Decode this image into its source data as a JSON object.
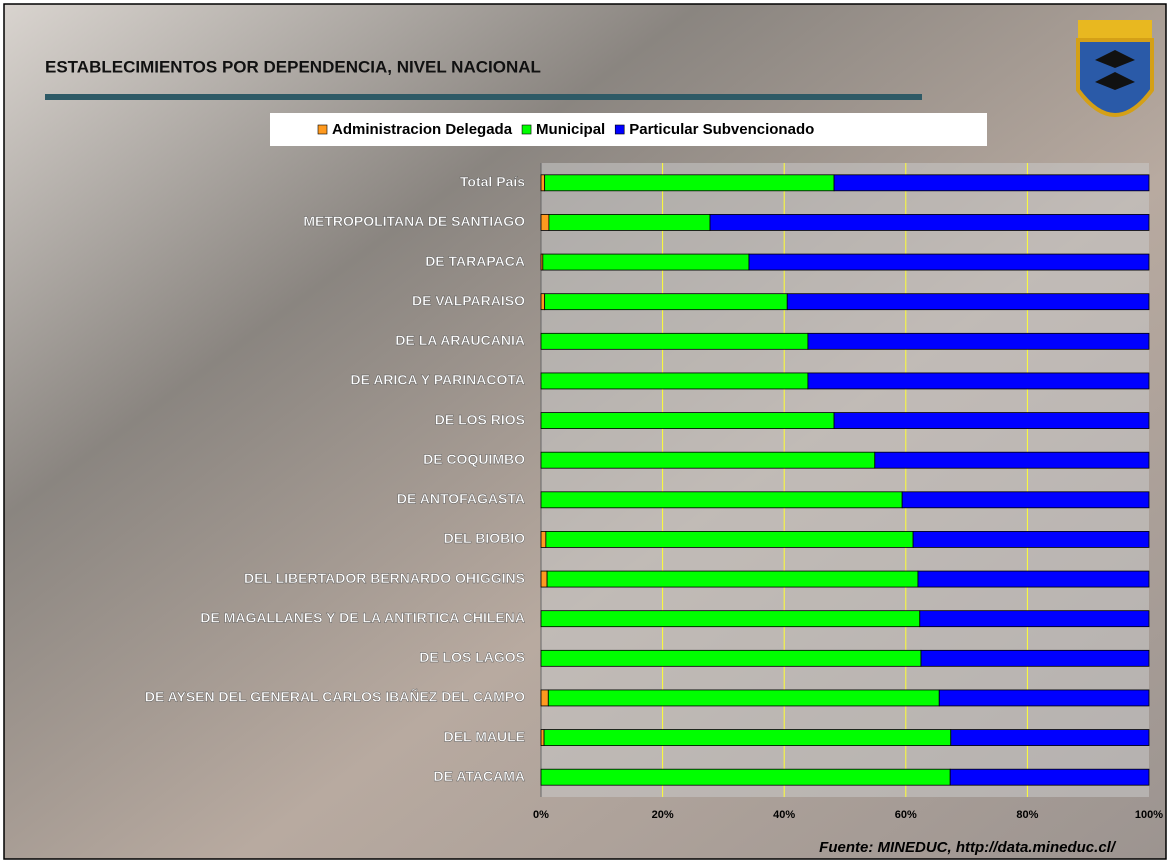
{
  "chart_data": {
    "type": "stacked-barh",
    "title": "ESTABLECIMIENTOS POR DEPENDENCIA, NIVEL NACIONAL",
    "source": "Fuente: MINEDUC, http://data.mineduc.cl/",
    "categories": [
      "Total País",
      "METROPOLITANA DE SANTIAGO",
      "DE TARAPACA",
      "DE VALPARAISO",
      "DE LA ARAUCANIA",
      "DE ARICA Y PARINACOTA",
      "DE LOS RIOS",
      "DE COQUIMBO",
      "DE ANTOFAGASTA",
      "DEL BIOBIO",
      "DEL LIBERTADOR BERNARDO OHIGGINS",
      "DE MAGALLANES Y DE LA ANTIRTICA CHILENA",
      "DE LOS LAGOS",
      "DE AYSEN DEL GENERAL CARLOS IBAÑEZ DEL CAMPO",
      "DEL MAULE",
      "DE ATACAMA"
    ],
    "series": [
      {
        "name": "Administracion Delegada",
        "color": "#ff9a1f",
        "values": [
          0.6,
          1.3,
          0.3,
          0.6,
          0,
          0,
          0,
          0,
          0,
          0.8,
          1.0,
          0,
          0,
          1.2,
          0.5,
          0
        ]
      },
      {
        "name": "Municipal",
        "color": "#00ff00",
        "values": [
          47.6,
          26.5,
          33.9,
          39.9,
          43.9,
          43.9,
          48.2,
          54.9,
          59.4,
          60.4,
          61.0,
          62.3,
          62.5,
          64.3,
          66.9,
          67.3
        ]
      },
      {
        "name": "Particular Subvencionado",
        "color": "#0000ff",
        "values": [
          51.8,
          72.2,
          65.8,
          59.5,
          56.1,
          56.1,
          51.8,
          45.1,
          40.6,
          38.8,
          38.0,
          37.7,
          37.5,
          34.5,
          32.6,
          32.7
        ]
      }
    ],
    "xlim": [
      0,
      100
    ],
    "xticks": [
      {
        "value": 0,
        "label": "0%"
      },
      {
        "value": 20,
        "label": "20%"
      },
      {
        "value": 40,
        "label": "40%"
      },
      {
        "value": 60,
        "label": "60%"
      },
      {
        "value": 80,
        "label": "80%"
      },
      {
        "value": 100,
        "label": "100%"
      }
    ],
    "grid": true,
    "grid_color": "#ffff33"
  }
}
